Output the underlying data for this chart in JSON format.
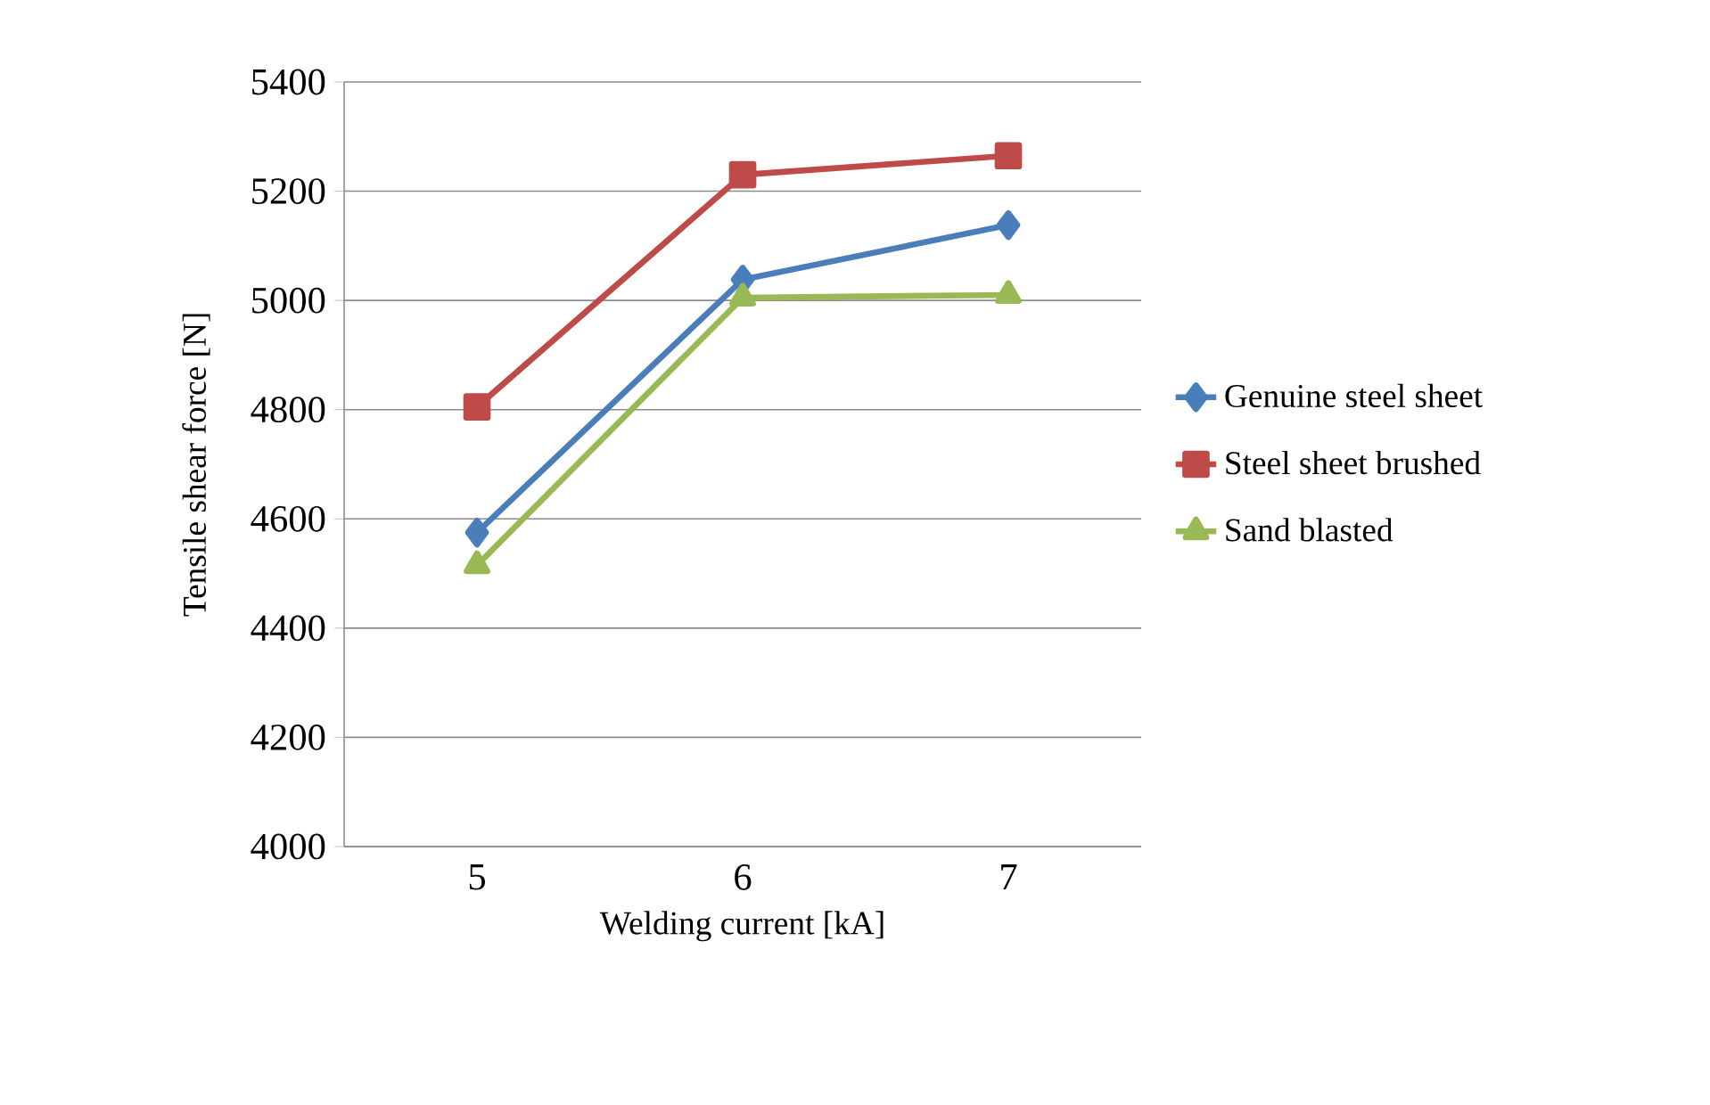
{
  "chart_data": {
    "type": "line",
    "xlabel": "Welding current [kA]",
    "ylabel": "Tensile shear force [N]",
    "categories": [
      "5",
      "6",
      "7"
    ],
    "ylim": [
      4000,
      5400
    ],
    "yticks": [
      4000,
      4200,
      4400,
      4600,
      4800,
      5000,
      5200,
      5400
    ],
    "grid": "y",
    "legend": "right",
    "series": [
      {
        "name": "Genuine steel sheet",
        "color": "#4a7ebb",
        "marker": "diamond",
        "values": [
          4575,
          5038,
          5138
        ]
      },
      {
        "name": "Steel sheet brushed",
        "color": "#be4b48",
        "marker": "square",
        "values": [
          4805,
          5230,
          5265
        ]
      },
      {
        "name": "Sand blasted",
        "color": "#98b954",
        "marker": "triangle",
        "values": [
          4515,
          5005,
          5010
        ]
      }
    ]
  }
}
